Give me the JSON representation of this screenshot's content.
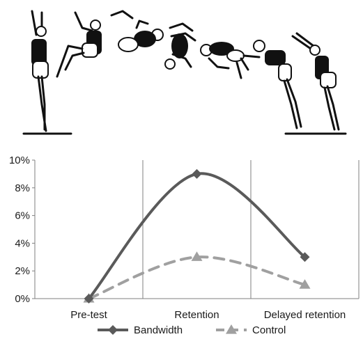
{
  "chart_data": {
    "type": "line",
    "categories": [
      "Pre-test",
      "Retention",
      "Delayed retention"
    ],
    "y_tick_labels": [
      "0%",
      "2%",
      "4%",
      "6%",
      "8%",
      "10%"
    ],
    "ylim": [
      0,
      10
    ],
    "y_unit": "%",
    "grid": "vertical",
    "legend_position": "bottom",
    "series": [
      {
        "name": "Bandwidth",
        "values": [
          0,
          9,
          3
        ],
        "marker": "diamond",
        "line_style": "solid",
        "smooth": true,
        "color": "#5a5a5a"
      },
      {
        "name": "Control",
        "values": [
          0,
          3,
          1
        ],
        "marker": "triangle",
        "line_style": "dashed",
        "smooth": true,
        "color": "#a0a0a0"
      }
    ]
  },
  "illustration": {
    "subject": "gymnast-back-somersault-sequence",
    "frames": 7
  },
  "colors": {
    "axis": "#7f7f7f",
    "gridline": "#7f7f7f",
    "figure_ink": "#111111"
  }
}
